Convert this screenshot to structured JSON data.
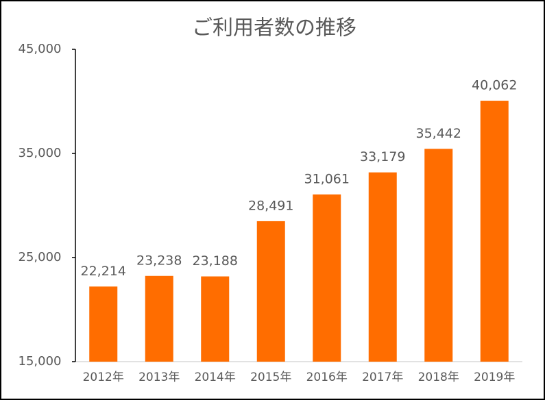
{
  "chart_data": {
    "type": "bar",
    "title": "ご利用者数の推移",
    "categories": [
      "2012年",
      "2013年",
      "2014年",
      "2015年",
      "2016年",
      "2017年",
      "2018年",
      "2019年"
    ],
    "values": [
      22214,
      23238,
      23188,
      28491,
      31061,
      33179,
      35442,
      40062
    ],
    "value_labels": [
      "22,214",
      "23,238",
      "23,188",
      "28,491",
      "31,061",
      "33,179",
      "35,442",
      "40,062"
    ],
    "color": "#ff6d00",
    "ylim": [
      15000,
      45000
    ],
    "yticks": [
      {
        "value": 15000,
        "label": "15,000"
      },
      {
        "value": 25000,
        "label": "25,000"
      },
      {
        "value": 35000,
        "label": "35,000"
      },
      {
        "value": 45000,
        "label": "45,000"
      }
    ]
  }
}
